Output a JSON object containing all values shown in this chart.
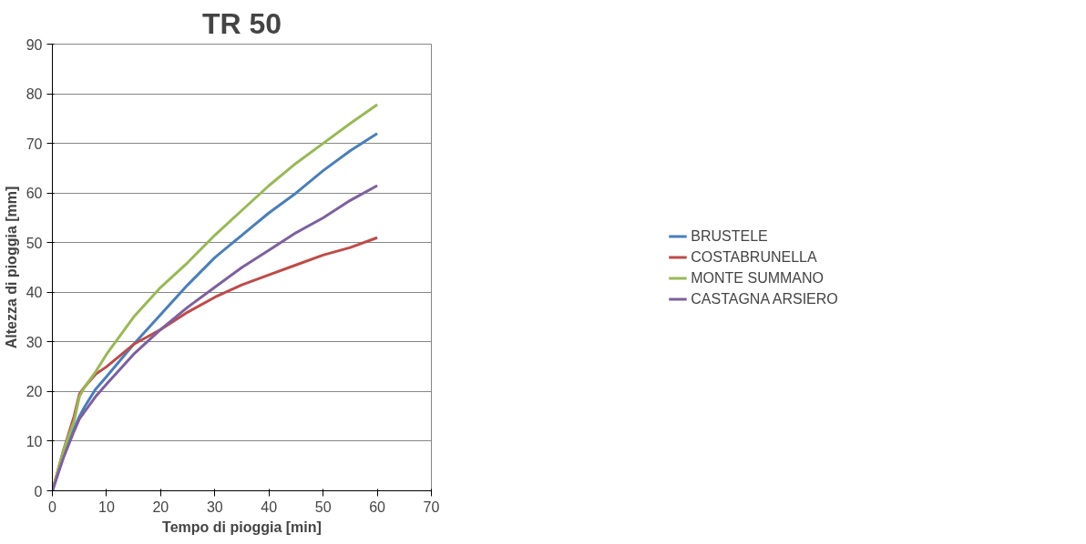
{
  "chart_data": {
    "type": "line",
    "title": "TR 50",
    "xlabel": "Tempo di pioggia [min]",
    "ylabel": "Altezza di pioggia [mm]",
    "x": [
      0,
      2,
      4,
      5,
      6,
      8,
      10,
      15,
      20,
      25,
      30,
      35,
      40,
      45,
      50,
      55,
      60
    ],
    "series": [
      {
        "name": "BRUSTELE",
        "color": "#4a7ebb",
        "values": [
          0,
          7,
          12.5,
          15,
          17,
          20.5,
          23,
          29.5,
          35.5,
          41.5,
          47,
          51.5,
          56,
          60,
          64.5,
          68.5,
          72
        ]
      },
      {
        "name": "COSTABRUNELLA",
        "color": "#be4b48",
        "values": [
          0,
          8,
          15,
          19.5,
          21,
          23.5,
          25,
          29.5,
          32.5,
          36,
          39,
          41.5,
          43.5,
          45.5,
          47.5,
          49,
          51
        ]
      },
      {
        "name": "MONTE SUMMANO",
        "color": "#98b954",
        "values": [
          0,
          8,
          14,
          19,
          21,
          24,
          27.5,
          35,
          41,
          46,
          51.5,
          56.5,
          61.5,
          66,
          70,
          74,
          77.8
        ]
      },
      {
        "name": "CASTAGNA ARSIERO",
        "color": "#7d60a0",
        "values": [
          0,
          6.5,
          12,
          14.5,
          16,
          19,
          21.5,
          27.5,
          32.5,
          37,
          41,
          45,
          48.5,
          52,
          55,
          58.5,
          61.5
        ]
      }
    ],
    "xlim": [
      0,
      70
    ],
    "xticks": [
      0,
      10,
      20,
      30,
      40,
      50,
      60,
      70
    ],
    "ylim": [
      0,
      90
    ],
    "yticks": [
      0,
      10,
      20,
      30,
      40,
      50,
      60,
      70,
      80,
      90
    ],
    "grid": "y",
    "legend": "right",
    "line_style": "solid",
    "marker": "none"
  }
}
